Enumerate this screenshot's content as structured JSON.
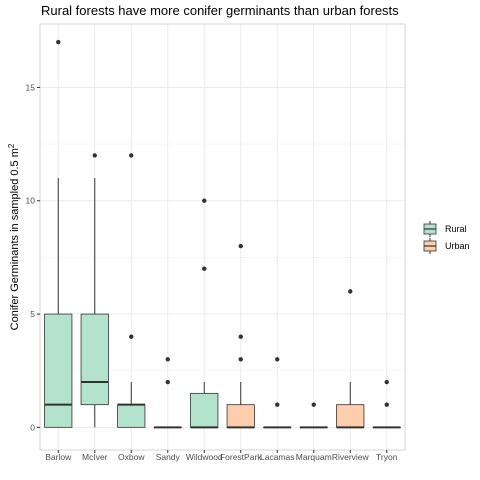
{
  "chart_data": {
    "type": "box",
    "title": "Rural forests have more conifer germinants than urban forests",
    "xlabel": "",
    "ylabel": "Conifer Germinants in sampled 0.5 m",
    "ylabel_superscript": "2",
    "ylim": [
      -1,
      17.8
    ],
    "yticks": [
      0,
      5,
      10,
      15
    ],
    "grid": true,
    "legend_position": "right",
    "legend": [
      {
        "name": "Rural",
        "color": "#b3e2cd"
      },
      {
        "name": "Urban",
        "color": "#fdcdac"
      }
    ],
    "categories": [
      "Barlow",
      "McIver",
      "Oxbow",
      "Sandy",
      "Wildwood",
      "ForestPark",
      "Lacamas",
      "Marquam",
      "Riverview",
      "Tryon"
    ],
    "boxes": [
      {
        "category": "Barlow",
        "group": "Rural",
        "lower_whisker": 0,
        "q1": 0,
        "median": 1,
        "q3": 5,
        "upper_whisker": 11,
        "outliers": [
          17
        ]
      },
      {
        "category": "McIver",
        "group": "Rural",
        "lower_whisker": 0,
        "q1": 1,
        "median": 2,
        "q3": 5,
        "upper_whisker": 11,
        "outliers": [
          12
        ]
      },
      {
        "category": "Oxbow",
        "group": "Rural",
        "lower_whisker": 0,
        "q1": 0,
        "median": 1,
        "q3": 1,
        "upper_whisker": 2,
        "outliers": [
          4,
          12
        ]
      },
      {
        "category": "Sandy",
        "group": "Rural",
        "lower_whisker": 0,
        "q1": 0,
        "median": 0,
        "q3": 0,
        "upper_whisker": 0,
        "outliers": [
          2,
          3
        ]
      },
      {
        "category": "Wildwood",
        "group": "Rural",
        "lower_whisker": 0,
        "q1": 0,
        "median": 0,
        "q3": 1.5,
        "upper_whisker": 2,
        "outliers": [
          7,
          10
        ]
      },
      {
        "category": "ForestPark",
        "group": "Urban",
        "lower_whisker": 0,
        "q1": 0,
        "median": 0,
        "q3": 1,
        "upper_whisker": 2,
        "outliers": [
          3,
          4,
          8
        ]
      },
      {
        "category": "Lacamas",
        "group": "Urban",
        "lower_whisker": 0,
        "q1": 0,
        "median": 0,
        "q3": 0,
        "upper_whisker": 0,
        "outliers": [
          1,
          3
        ]
      },
      {
        "category": "Marquam",
        "group": "Urban",
        "lower_whisker": 0,
        "q1": 0,
        "median": 0,
        "q3": 0,
        "upper_whisker": 0,
        "outliers": [
          1
        ]
      },
      {
        "category": "Riverview",
        "group": "Urban",
        "lower_whisker": 0,
        "q1": 0,
        "median": 0,
        "q3": 1,
        "upper_whisker": 2,
        "outliers": [
          6
        ]
      },
      {
        "category": "Tryon",
        "group": "Urban",
        "lower_whisker": 0,
        "q1": 0,
        "median": 0,
        "q3": 0,
        "upper_whisker": 0,
        "outliers": [
          1,
          2
        ]
      }
    ]
  }
}
